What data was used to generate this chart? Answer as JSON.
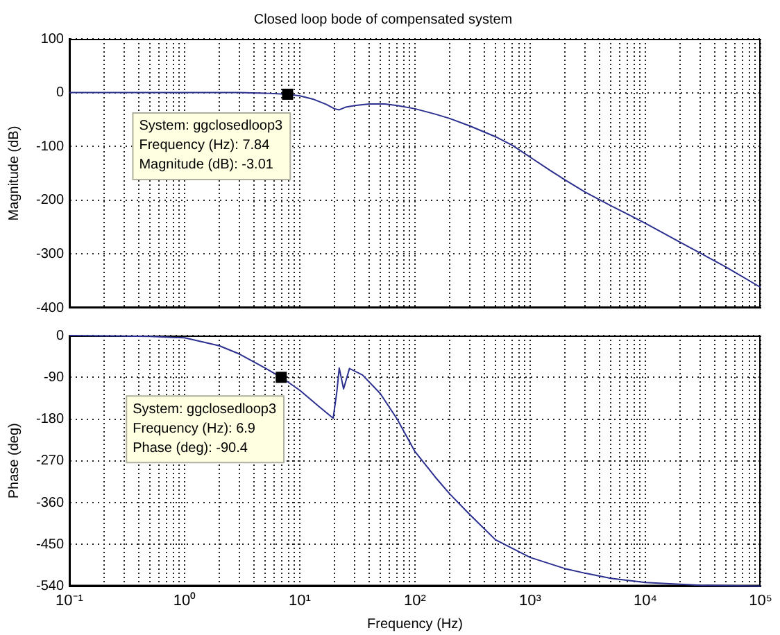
{
  "chart_data": [
    {
      "type": "line",
      "title": "Closed loop bode of compensated system",
      "ylabel": "Magnitude (dB)",
      "log": "x",
      "grid": true,
      "tick_labels": "y",
      "x": [
        0.1,
        1,
        3,
        5,
        7.84,
        10,
        13,
        17,
        20,
        22,
        25,
        30,
        40,
        55,
        70,
        100,
        150,
        200,
        300,
        500,
        700,
        1000,
        1500,
        2000,
        3000,
        5000,
        7000,
        10000,
        20000,
        50000,
        100000
      ],
      "series": [
        {
          "color": "#2b2f8f",
          "values": [
            0,
            0,
            0,
            -1,
            -3,
            -6,
            -12,
            -22,
            -30,
            -32,
            -27,
            -24,
            -21,
            -21,
            -24,
            -30,
            -40,
            -48,
            -62,
            -82,
            -98,
            -120,
            -145,
            -162,
            -185,
            -210,
            -226,
            -243,
            -278,
            -324,
            -362
          ]
        }
      ],
      "xlim": [
        0.1,
        100000
      ],
      "ylim": [
        -400,
        100
      ],
      "yticks": [
        -400,
        -300,
        -200,
        -100,
        0,
        100
      ],
      "xticks": [
        {
          "value": 0.1,
          "label": null
        },
        {
          "value": 0.2,
          "label": null
        },
        {
          "value": 0.3,
          "label": null
        },
        {
          "value": 0.4,
          "label": null
        },
        {
          "value": 0.5,
          "label": null
        },
        {
          "value": 0.6,
          "label": null
        },
        {
          "value": 0.7,
          "label": null
        },
        {
          "value": 0.8,
          "label": null
        },
        {
          "value": 0.9,
          "label": null
        },
        {
          "value": 1,
          "label": null
        },
        {
          "value": 2,
          "label": null
        },
        {
          "value": 3,
          "label": null
        },
        {
          "value": 4,
          "label": null
        },
        {
          "value": 5,
          "label": null
        },
        {
          "value": 6,
          "label": null
        },
        {
          "value": 7,
          "label": null
        },
        {
          "value": 8,
          "label": null
        },
        {
          "value": 9,
          "label": null
        },
        {
          "value": 10,
          "label": null
        },
        {
          "value": 20,
          "label": null
        },
        {
          "value": 30,
          "label": null
        },
        {
          "value": 40,
          "label": null
        },
        {
          "value": 50,
          "label": null
        },
        {
          "value": 60,
          "label": null
        },
        {
          "value": 70,
          "label": null
        },
        {
          "value": 80,
          "label": null
        },
        {
          "value": 90,
          "label": null
        },
        {
          "value": 100,
          "label": null
        },
        {
          "value": 200,
          "label": null
        },
        {
          "value": 300,
          "label": null
        },
        {
          "value": 400,
          "label": null
        },
        {
          "value": 500,
          "label": null
        },
        {
          "value": 600,
          "label": null
        },
        {
          "value": 700,
          "label": null
        },
        {
          "value": 800,
          "label": null
        },
        {
          "value": 900,
          "label": null
        },
        {
          "value": 1000,
          "label": null
        },
        {
          "value": 2000,
          "label": null
        },
        {
          "value": 3000,
          "label": null
        },
        {
          "value": 4000,
          "label": null
        },
        {
          "value": 5000,
          "label": null
        },
        {
          "value": 6000,
          "label": null
        },
        {
          "value": 7000,
          "label": null
        },
        {
          "value": 8000,
          "label": null
        },
        {
          "value": 9000,
          "label": null
        },
        {
          "value": 10000,
          "label": null
        },
        {
          "value": 20000,
          "label": null
        },
        {
          "value": 30000,
          "label": null
        },
        {
          "value": 40000,
          "label": null
        },
        {
          "value": 50000,
          "label": null
        },
        {
          "value": 60000,
          "label": null
        },
        {
          "value": 70000,
          "label": null
        },
        {
          "value": 80000,
          "label": null
        },
        {
          "value": 90000,
          "label": null
        },
        {
          "value": 100000,
          "label": null
        }
      ],
      "annotations": [
        {
          "text": "System: ggclosedloop3\nFrequency (Hz): 7.84\nMagnitude (dB): -3.01",
          "x": 7.84,
          "y": -3
        }
      ]
    },
    {
      "type": "line",
      "xlabel": "Frequency (Hz)",
      "ylabel": "Phase (deg)",
      "log": "x",
      "grid": true,
      "x": [
        0.1,
        0.3,
        0.5,
        1,
        2,
        3,
        5,
        6.9,
        10,
        15,
        19.5,
        21,
        22,
        24,
        27,
        35,
        50,
        70,
        100,
        150,
        200,
        300,
        500,
        1000,
        2000,
        3000,
        5000,
        10000,
        30000,
        100000
      ],
      "series": [
        {
          "color": "#2b2f8f",
          "values": [
            0,
            -1,
            -2,
            -5,
            -22,
            -40,
            -70,
            -90,
            -118,
            -155,
            -178,
            -120,
            -70,
            -115,
            -71,
            -85,
            -125,
            -180,
            -250,
            -305,
            -341,
            -386,
            -440,
            -478,
            -502,
            -512,
            -523,
            -532,
            -538,
            -540
          ]
        }
      ],
      "xlim": [
        0.1,
        100000
      ],
      "ylim": [
        -540,
        0
      ],
      "yticks": [
        -540,
        -450,
        -360,
        -270,
        -180,
        -90,
        0
      ],
      "xticks": [
        {
          "value": 0.1,
          "label": "10⁻¹"
        },
        {
          "value": 0.2,
          "label": null
        },
        {
          "value": 0.3,
          "label": null
        },
        {
          "value": 0.4,
          "label": null
        },
        {
          "value": 0.5,
          "label": null
        },
        {
          "value": 0.6,
          "label": null
        },
        {
          "value": 0.7,
          "label": null
        },
        {
          "value": 0.8,
          "label": null
        },
        {
          "value": 0.9,
          "label": null
        },
        {
          "value": 1,
          "label": "10⁰"
        },
        {
          "value": 2,
          "label": null
        },
        {
          "value": 3,
          "label": null
        },
        {
          "value": 4,
          "label": null
        },
        {
          "value": 5,
          "label": null
        },
        {
          "value": 6,
          "label": null
        },
        {
          "value": 7,
          "label": null
        },
        {
          "value": 8,
          "label": null
        },
        {
          "value": 9,
          "label": null
        },
        {
          "value": 10,
          "label": "10¹"
        },
        {
          "value": 20,
          "label": null
        },
        {
          "value": 30,
          "label": null
        },
        {
          "value": 40,
          "label": null
        },
        {
          "value": 50,
          "label": null
        },
        {
          "value": 60,
          "label": null
        },
        {
          "value": 70,
          "label": null
        },
        {
          "value": 80,
          "label": null
        },
        {
          "value": 90,
          "label": null
        },
        {
          "value": 100,
          "label": "10²"
        },
        {
          "value": 200,
          "label": null
        },
        {
          "value": 300,
          "label": null
        },
        {
          "value": 400,
          "label": null
        },
        {
          "value": 500,
          "label": null
        },
        {
          "value": 600,
          "label": null
        },
        {
          "value": 700,
          "label": null
        },
        {
          "value": 800,
          "label": null
        },
        {
          "value": 900,
          "label": null
        },
        {
          "value": 1000,
          "label": "10³"
        },
        {
          "value": 2000,
          "label": null
        },
        {
          "value": 3000,
          "label": null
        },
        {
          "value": 4000,
          "label": null
        },
        {
          "value": 5000,
          "label": null
        },
        {
          "value": 6000,
          "label": null
        },
        {
          "value": 7000,
          "label": null
        },
        {
          "value": 8000,
          "label": null
        },
        {
          "value": 9000,
          "label": null
        },
        {
          "value": 10000,
          "label": "10⁴"
        },
        {
          "value": 20000,
          "label": null
        },
        {
          "value": 30000,
          "label": null
        },
        {
          "value": 40000,
          "label": null
        },
        {
          "value": 50000,
          "label": null
        },
        {
          "value": 60000,
          "label": null
        },
        {
          "value": 70000,
          "label": null
        },
        {
          "value": 80000,
          "label": null
        },
        {
          "value": 90000,
          "label": null
        },
        {
          "value": 100000,
          "label": "10⁵"
        }
      ],
      "annotations": [
        {
          "text": "System: ggclosedloop3\nFrequency (Hz): 6.9\nPhase (deg): -90.4",
          "x": 6.9,
          "y": -90
        }
      ]
    }
  ]
}
